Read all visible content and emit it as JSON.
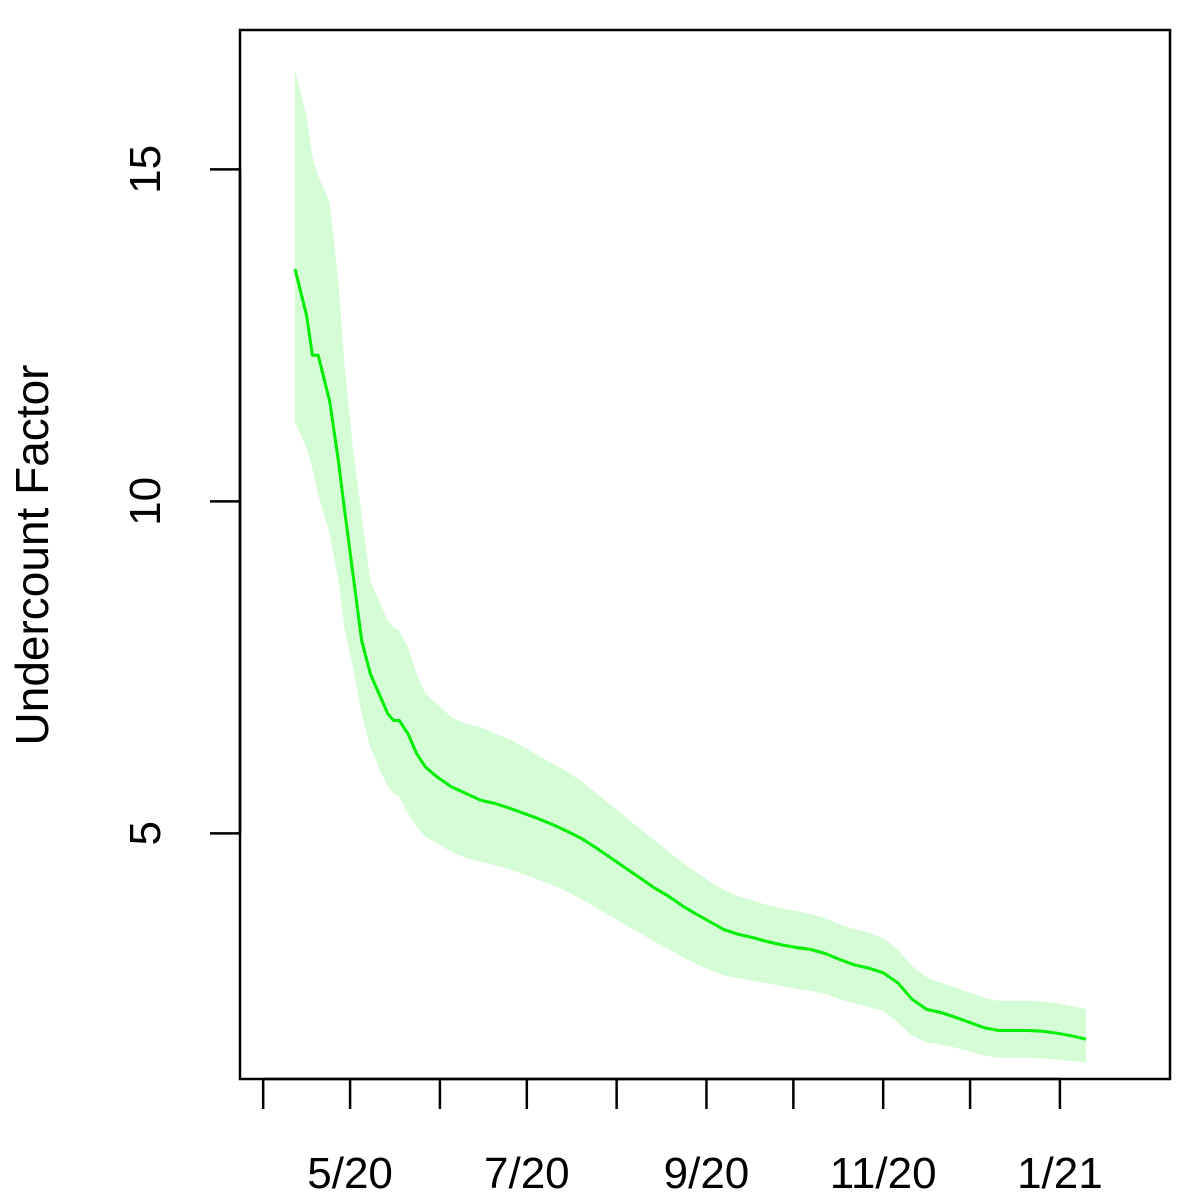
{
  "chart_data": {
    "type": "line",
    "title": "",
    "xlabel": "",
    "ylabel": "Undercount Factor",
    "xlim": [
      "2020-03-24",
      "2021-02-08"
    ],
    "ylim": [
      1.3,
      17.1
    ],
    "x_ticks": [
      {
        "date": "2020-04-01",
        "label": ""
      },
      {
        "date": "2020-05-01",
        "label": "5/20"
      },
      {
        "date": "2020-06-01",
        "label": ""
      },
      {
        "date": "2020-07-01",
        "label": "7/20"
      },
      {
        "date": "2020-08-01",
        "label": ""
      },
      {
        "date": "2020-09-01",
        "label": "9/20"
      },
      {
        "date": "2020-10-01",
        "label": ""
      },
      {
        "date": "2020-11-01",
        "label": "11/20"
      },
      {
        "date": "2020-12-01",
        "label": ""
      },
      {
        "date": "2021-01-01",
        "label": "1/21"
      }
    ],
    "y_ticks": [
      {
        "value": 5,
        "label": "5"
      },
      {
        "value": 10,
        "label": "10"
      },
      {
        "value": 15,
        "label": "15"
      }
    ],
    "grid": false,
    "legend": "none",
    "series": [
      {
        "color": "#00ee00",
        "band_color": "#d5fdd5",
        "x": [
          "2020-04-12",
          "2020-04-16",
          "2020-04-18",
          "2020-04-20",
          "2020-04-24",
          "2020-04-27",
          "2020-04-29",
          "2020-05-02",
          "2020-05-05",
          "2020-05-08",
          "2020-05-11",
          "2020-05-14",
          "2020-05-16",
          "2020-05-18",
          "2020-05-21",
          "2020-05-24",
          "2020-05-27",
          "2020-05-31",
          "2020-06-05",
          "2020-06-10",
          "2020-06-15",
          "2020-06-20",
          "2020-06-25",
          "2020-06-30",
          "2020-07-05",
          "2020-07-10",
          "2020-07-15",
          "2020-07-20",
          "2020-07-25",
          "2020-07-30",
          "2020-08-04",
          "2020-08-09",
          "2020-08-14",
          "2020-08-19",
          "2020-08-24",
          "2020-08-29",
          "2020-09-03",
          "2020-09-07",
          "2020-09-12",
          "2020-09-17",
          "2020-09-22",
          "2020-09-27",
          "2020-10-02",
          "2020-10-07",
          "2020-10-12",
          "2020-10-17",
          "2020-10-22",
          "2020-10-27",
          "2020-11-01",
          "2020-11-06",
          "2020-11-11",
          "2020-11-16",
          "2020-11-21",
          "2020-11-26",
          "2020-12-01",
          "2020-12-06",
          "2020-12-11",
          "2020-12-16",
          "2020-12-21",
          "2020-12-26",
          "2020-12-31",
          "2021-01-05",
          "2021-01-10"
        ],
        "values": [
          13.5,
          12.8,
          12.2,
          12.2,
          11.5,
          10.6,
          9.9,
          8.9,
          7.9,
          7.4,
          7.1,
          6.8,
          6.7,
          6.7,
          6.5,
          6.2,
          6.0,
          5.85,
          5.7,
          5.6,
          5.5,
          5.45,
          5.38,
          5.3,
          5.22,
          5.13,
          5.03,
          4.92,
          4.78,
          4.63,
          4.48,
          4.33,
          4.18,
          4.05,
          3.9,
          3.77,
          3.65,
          3.55,
          3.48,
          3.43,
          3.37,
          3.32,
          3.28,
          3.25,
          3.19,
          3.1,
          3.02,
          2.97,
          2.9,
          2.75,
          2.5,
          2.35,
          2.3,
          2.23,
          2.15,
          2.07,
          2.03,
          2.03,
          2.03,
          2.02,
          1.99,
          1.95,
          1.9
        ],
        "lower": [
          11.2,
          10.8,
          10.5,
          10.1,
          9.5,
          8.8,
          8.1,
          7.5,
          6.8,
          6.3,
          5.98,
          5.7,
          5.6,
          5.55,
          5.3,
          5.1,
          4.95,
          4.85,
          4.72,
          4.63,
          4.57,
          4.52,
          4.46,
          4.38,
          4.3,
          4.22,
          4.12,
          4.0,
          3.88,
          3.75,
          3.62,
          3.5,
          3.37,
          3.25,
          3.13,
          3.02,
          2.93,
          2.86,
          2.82,
          2.78,
          2.74,
          2.7,
          2.66,
          2.63,
          2.58,
          2.5,
          2.44,
          2.38,
          2.33,
          2.15,
          1.95,
          1.85,
          1.82,
          1.77,
          1.71,
          1.65,
          1.62,
          1.62,
          1.62,
          1.61,
          1.59,
          1.57,
          1.55
        ],
        "upper": [
          16.5,
          15.8,
          15.2,
          14.9,
          14.5,
          13.3,
          12.1,
          10.8,
          9.8,
          8.8,
          8.5,
          8.2,
          8.1,
          8.05,
          7.8,
          7.4,
          7.1,
          6.95,
          6.75,
          6.65,
          6.6,
          6.5,
          6.42,
          6.3,
          6.17,
          6.05,
          5.93,
          5.78,
          5.6,
          5.43,
          5.25,
          5.07,
          4.9,
          4.72,
          4.55,
          4.4,
          4.25,
          4.15,
          4.05,
          3.99,
          3.92,
          3.87,
          3.83,
          3.78,
          3.72,
          3.63,
          3.56,
          3.5,
          3.42,
          3.25,
          3.0,
          2.83,
          2.75,
          2.68,
          2.6,
          2.52,
          2.48,
          2.48,
          2.48,
          2.47,
          2.44,
          2.4,
          2.35
        ]
      }
    ]
  }
}
